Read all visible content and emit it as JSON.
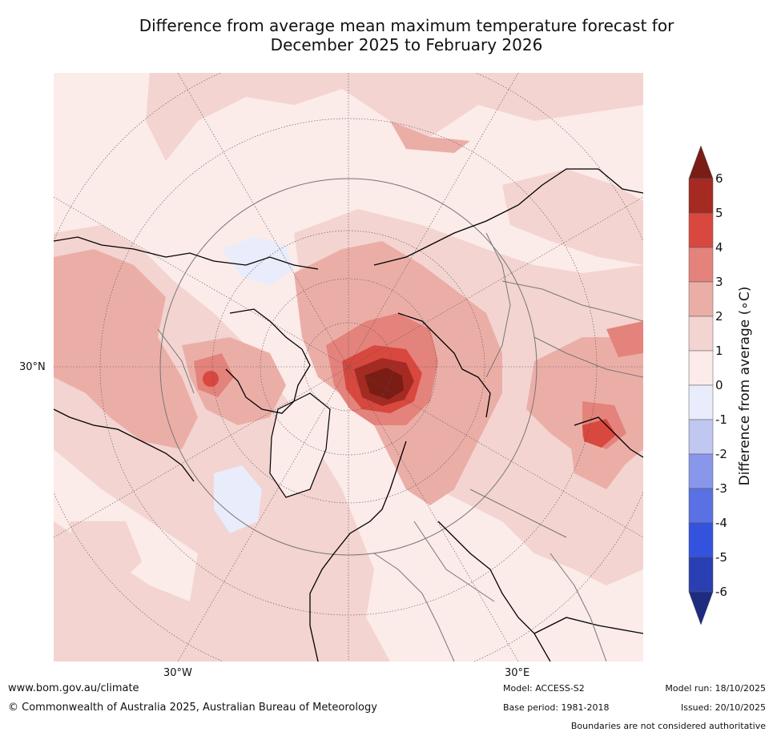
{
  "title": {
    "line1": "Difference from average mean maximum temperature forecast for",
    "line2": "December 2025 to February 2026"
  },
  "map": {
    "projection": "north-polar-stereographic",
    "lat_labels": [
      "30°N"
    ],
    "lon_labels": [
      "30°W",
      "30°E"
    ]
  },
  "colorbar": {
    "label": "Difference from average (∘C)",
    "ticks": [
      "6",
      "5",
      "4",
      "3",
      "2",
      "1",
      "0",
      "-1",
      "-2",
      "-3",
      "-4",
      "-5",
      "-6"
    ],
    "bins_top_to_bottom": [
      {
        "range": "above 6",
        "color": "#7a1d14"
      },
      {
        "range": "5 to 6",
        "color": "#a52a22"
      },
      {
        "range": "4 to 5",
        "color": "#d8483f"
      },
      {
        "range": "3 to 4",
        "color": "#e4837b"
      },
      {
        "range": "2 to 3",
        "color": "#ebaea7"
      },
      {
        "range": "1 to 2",
        "color": "#f3d4d0"
      },
      {
        "range": "0 to 1",
        "color": "#fbebe9"
      },
      {
        "range": "-1 to 0",
        "color": "#e9ecfa"
      },
      {
        "range": "-2 to -1",
        "color": "#c0c7f0"
      },
      {
        "range": "-3 to -2",
        "color": "#8897ea"
      },
      {
        "range": "-4 to -3",
        "color": "#5a71e3"
      },
      {
        "range": "-5 to -4",
        "color": "#3353df"
      },
      {
        "range": "-6 to -5",
        "color": "#2a3fb2"
      },
      {
        "range": "below -6",
        "color": "#1e2c80"
      }
    ]
  },
  "footer": {
    "url": "www.bom.gov.au/climate",
    "copyright": "© Commonwealth of Australia 2025, Australian Bureau of Meteorology",
    "model": "Model: ACCESS-S2",
    "base_period": "Base period: 1981-2018",
    "model_run": "Model run: 18/10/2025",
    "issued": "Issued: 20/10/2025",
    "boundaries_note": "Boundaries are not considered authoritative"
  }
}
